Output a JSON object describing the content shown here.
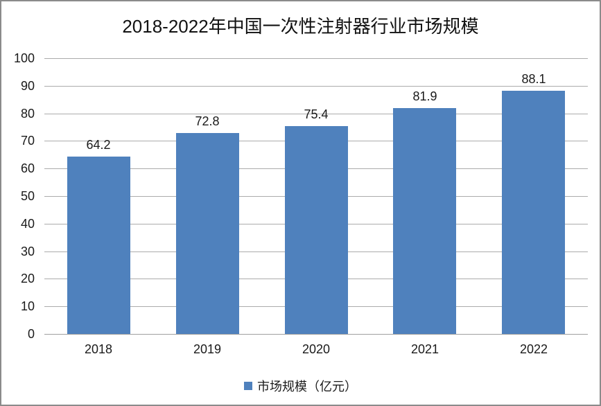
{
  "chart_data": {
    "type": "bar",
    "title": "2018-2022年中国一次性注射器行业市场规模",
    "categories": [
      "2018",
      "2019",
      "2020",
      "2021",
      "2022"
    ],
    "series": [
      {
        "name": "市场规模（亿元）",
        "values": [
          64.2,
          72.8,
          75.4,
          81.9,
          88.1
        ],
        "value_labels": [
          "64.2",
          "72.8",
          "75.4",
          "81.9",
          "88.1"
        ]
      }
    ],
    "xlabel": "",
    "ylabel": "",
    "ylim": [
      0,
      100
    ],
    "ytick_step": 10,
    "yticks": [
      0,
      10,
      20,
      30,
      40,
      50,
      60,
      70,
      80,
      90,
      100
    ],
    "grid": true,
    "legend_position": "bottom",
    "colors": {
      "bar_fill": "#4f81bd",
      "gridline": "#ababab",
      "axis_line": "#a0a0a0",
      "text": "#1a1a1a",
      "figure_border": "#8b8b8b",
      "background": "#ffffff"
    }
  }
}
